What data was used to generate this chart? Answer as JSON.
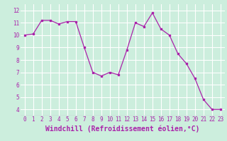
{
  "x": [
    0,
    1,
    2,
    3,
    4,
    5,
    6,
    7,
    8,
    9,
    10,
    11,
    12,
    13,
    14,
    15,
    16,
    17,
    18,
    19,
    20,
    21,
    22,
    23
  ],
  "y": [
    10.0,
    10.1,
    11.2,
    11.2,
    10.9,
    11.1,
    11.1,
    9.0,
    7.0,
    6.7,
    7.0,
    6.8,
    8.8,
    11.0,
    10.7,
    11.8,
    10.5,
    10.0,
    8.5,
    7.7,
    6.5,
    4.8,
    4.0,
    4.0
  ],
  "line_color": "#aa22aa",
  "marker_color": "#aa22aa",
  "bg_color": "#cceedd",
  "grid_color": "#ffffff",
  "xlabel": "Windchill (Refroidissement éolien,°C)",
  "tick_color": "#aa22aa",
  "ylim": [
    3.5,
    12.5
  ],
  "xlim": [
    -0.5,
    23.5
  ],
  "yticks": [
    4,
    5,
    6,
    7,
    8,
    9,
    10,
    11,
    12
  ],
  "xticks": [
    0,
    1,
    2,
    3,
    4,
    5,
    6,
    7,
    8,
    9,
    10,
    11,
    12,
    13,
    14,
    15,
    16,
    17,
    18,
    19,
    20,
    21,
    22,
    23
  ],
  "tick_fontsize": 5.5,
  "xlabel_fontsize": 7.0
}
